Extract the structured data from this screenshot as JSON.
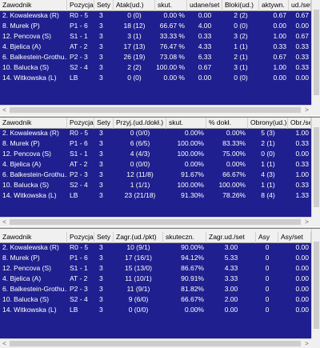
{
  "colors": {
    "grid_background": "#1f1f8f",
    "grid_text": "#ffffff",
    "header_background": "#f0f0f0",
    "window_background": "#f0f0f0"
  },
  "scroll_arrows": {
    "left": "<",
    "right": ">"
  },
  "tables": [
    {
      "name": "attack",
      "headers": [
        "Zawodnik",
        "Pozycja",
        "Sety",
        "Atak(ud.)",
        "skut.",
        "udane/set",
        "Bloki(ud.)",
        "aktywn.",
        "ud./set"
      ],
      "rows": [
        [
          "2. Kowalewska (R)",
          "R0 - 5",
          "3",
          "0 (0)",
          "0.00 %",
          "0.00",
          "2 (2)",
          "0.67",
          "0.67"
        ],
        [
          "8. Murek (P)",
          "P1 - 6",
          "3",
          "18 (12)",
          "66.67 %",
          "4.00",
          "0 (0)",
          "0.00",
          "0.00"
        ],
        [
          "12. Pencova (S)",
          "S1 - 1",
          "3",
          "3 (1)",
          "33.33 %",
          "0.33",
          "3 (2)",
          "1.00",
          "0.67"
        ],
        [
          "4. Bjelica (A)",
          "AT - 2",
          "3",
          "17 (13)",
          "76.47 %",
          "4.33",
          "1 (1)",
          "0.33",
          "0.33"
        ],
        [
          "6. Balkestein-Grothu...",
          "P2 - 3",
          "3",
          "26 (19)",
          "73.08 %",
          "6.33",
          "2 (1)",
          "0.67",
          "0.33"
        ],
        [
          "10. Balucka (S)",
          "S2 - 4",
          "3",
          "2 (2)",
          "100.00 %",
          "0.67",
          "3 (1)",
          "1.00",
          "0.33"
        ],
        [
          "14. Witkowska (L)",
          "LB",
          "3",
          "0 (0)",
          "0.00 %",
          "0.00",
          "0 (0)",
          "0.00",
          "0.00"
        ]
      ]
    },
    {
      "name": "reception",
      "headers": [
        "Zawodnik",
        "Pozycja",
        "Sety",
        "Przyj.(ud./dokł.)",
        "skut.",
        "% dokł.",
        "Obrony(ud.)",
        "Obr./set"
      ],
      "rows": [
        [
          "2. Kowalewska (R)",
          "R0 - 5",
          "3",
          "0 (0/0)",
          "0.00%",
          "0.00%",
          "5 (3)",
          "1.00"
        ],
        [
          "8. Murek (P)",
          "P1 - 6",
          "3",
          "6 (6/5)",
          "100.00%",
          "83.33%",
          "2 (1)",
          "0.33"
        ],
        [
          "12. Pencova (S)",
          "S1 - 1",
          "3",
          "4 (4/3)",
          "100.00%",
          "75.00%",
          "0 (0)",
          "0.00"
        ],
        [
          "4. Bjelica (A)",
          "AT - 2",
          "3",
          "0 (0/0)",
          "0.00%",
          "0.00%",
          "1 (1)",
          "0.33"
        ],
        [
          "6. Balkestein-Grothu...",
          "P2 - 3",
          "3",
          "12 (11/8)",
          "91.67%",
          "66.67%",
          "4 (3)",
          "1.00"
        ],
        [
          "10. Balucka (S)",
          "S2 - 4",
          "3",
          "1 (1/1)",
          "100.00%",
          "100.00%",
          "1 (1)",
          "0.33"
        ],
        [
          "14. Witkowska (L)",
          "LB",
          "3",
          "23 (21/18)",
          "91.30%",
          "78.26%",
          "8 (4)",
          "1.33"
        ]
      ]
    },
    {
      "name": "serve",
      "headers": [
        "Zawodnik",
        "Pozycja",
        "Sety",
        "Zagr.(ud./pkt)",
        "skuteczn.",
        "Zagr.ud./set",
        "Asy",
        "Asy/set"
      ],
      "rows": [
        [
          "2. Kowalewska (R)",
          "R0 - 5",
          "3",
          "10 (9/1)",
          "90.00%",
          "3.00",
          "0",
          "0.00"
        ],
        [
          "8. Murek (P)",
          "P1 - 6",
          "3",
          "17 (16/1)",
          "94.12%",
          "5.33",
          "0",
          "0.00"
        ],
        [
          "12. Pencova (S)",
          "S1 - 1",
          "3",
          "15 (13/0)",
          "86.67%",
          "4.33",
          "0",
          "0.00"
        ],
        [
          "4. Bjelica (A)",
          "AT - 2",
          "3",
          "11 (10/1)",
          "90.91%",
          "3.33",
          "0",
          "0.00"
        ],
        [
          "6. Balkestein-Grothu...",
          "P2 - 3",
          "3",
          "11 (9/1)",
          "81.82%",
          "3.00",
          "0",
          "0.00"
        ],
        [
          "10. Balucka (S)",
          "S2 - 4",
          "3",
          "9 (6/0)",
          "66.67%",
          "2.00",
          "0",
          "0.00"
        ],
        [
          "14. Witkowska (L)",
          "LB",
          "3",
          "0 (0/0)",
          "0.00%",
          "0.00",
          "0",
          "0.00"
        ]
      ]
    }
  ]
}
